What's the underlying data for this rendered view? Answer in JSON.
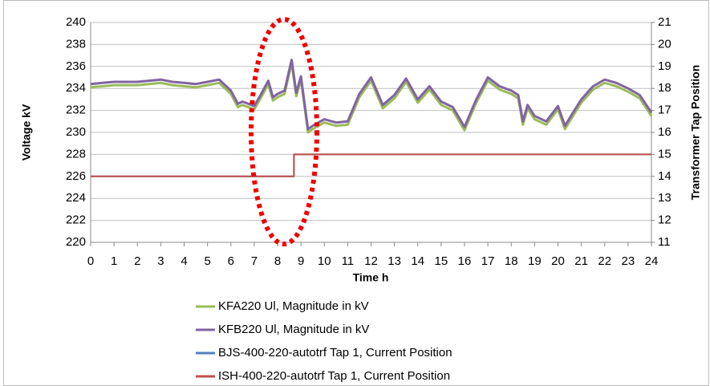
{
  "chart_data": {
    "type": "line",
    "xlabel": "Time h",
    "ylabel": "Voltage kV",
    "y2label": "Transformer Tap Position",
    "xlim": [
      0,
      24
    ],
    "xticks": [
      0,
      1,
      2,
      3,
      4,
      5,
      6,
      7,
      8,
      9,
      10,
      11,
      12,
      13,
      14,
      15,
      16,
      17,
      18,
      19,
      20,
      21,
      22,
      23,
      24
    ],
    "ylim": [
      220,
      240
    ],
    "yticks": [
      220,
      222,
      224,
      226,
      228,
      230,
      232,
      234,
      236,
      238,
      240
    ],
    "y2lim": [
      11,
      21
    ],
    "y2ticks": [
      11,
      12,
      13,
      14,
      15,
      16,
      17,
      18,
      19,
      20,
      21
    ],
    "grid": true,
    "legend": "bottom",
    "series": [
      {
        "name": "KFA220 Ul, Magnitude in kV",
        "color": "#9bbb59",
        "x": [
          0,
          0.5,
          1,
          1.5,
          2,
          2.5,
          3,
          3.5,
          4,
          4.5,
          5,
          5.5,
          6,
          6.3,
          6.5,
          7,
          7.3,
          7.6,
          7.8,
          8,
          8.3,
          8.6,
          8.8,
          9,
          9.3,
          9.5,
          10,
          10.5,
          11,
          11.5,
          12,
          12.5,
          13,
          13.5,
          14,
          14.5,
          15,
          15.5,
          16,
          16.5,
          17,
          17.5,
          18,
          18.3,
          18.5,
          18.7,
          19,
          19.5,
          20,
          20.3,
          20.7,
          21,
          21.5,
          22,
          22.5,
          23,
          23.5,
          24
        ],
        "values": [
          234.1,
          234.2,
          234.3,
          234.3,
          234.3,
          234.4,
          234.5,
          234.3,
          234.2,
          234.1,
          234.3,
          234.5,
          233.5,
          232.3,
          232.5,
          232.1,
          233.2,
          234.4,
          232.9,
          233.2,
          233.5,
          236.3,
          233.3,
          234.8,
          230.0,
          230.3,
          230.9,
          230.6,
          230.7,
          233.2,
          234.7,
          232.2,
          233.1,
          234.6,
          232.7,
          233.9,
          232.5,
          232.0,
          230.2,
          232.7,
          234.7,
          233.9,
          233.5,
          233.1,
          230.7,
          232.2,
          231.2,
          230.7,
          232.1,
          230.3,
          231.7,
          232.7,
          233.9,
          234.5,
          234.2,
          233.7,
          233.1,
          231.5
        ]
      },
      {
        "name": "KFB220 Ul, Magnitude in kV",
        "color": "#8064a2",
        "x": [
          0,
          0.5,
          1,
          1.5,
          2,
          2.5,
          3,
          3.5,
          4,
          4.5,
          5,
          5.5,
          6,
          6.3,
          6.5,
          7,
          7.3,
          7.6,
          7.8,
          8,
          8.3,
          8.6,
          8.8,
          9,
          9.3,
          9.5,
          10,
          10.5,
          11,
          11.5,
          12,
          12.5,
          13,
          13.5,
          14,
          14.5,
          15,
          15.5,
          16,
          16.5,
          17,
          17.5,
          18,
          18.3,
          18.5,
          18.7,
          19,
          19.5,
          20,
          20.3,
          20.7,
          21,
          21.5,
          22,
          22.5,
          23,
          23.5,
          24
        ],
        "values": [
          234.4,
          234.5,
          234.6,
          234.6,
          234.6,
          234.7,
          234.8,
          234.6,
          234.5,
          234.4,
          234.6,
          234.8,
          233.8,
          232.6,
          232.8,
          232.4,
          233.5,
          234.7,
          233.2,
          233.5,
          233.8,
          236.6,
          233.6,
          235.1,
          230.3,
          230.6,
          231.2,
          230.9,
          231.0,
          233.5,
          235.0,
          232.5,
          233.4,
          234.9,
          233.0,
          234.2,
          232.8,
          232.3,
          230.5,
          233.0,
          235.0,
          234.2,
          233.8,
          233.4,
          231.0,
          232.5,
          231.5,
          231.0,
          232.4,
          230.6,
          232.0,
          233.0,
          234.2,
          234.8,
          234.5,
          234.0,
          233.4,
          231.8
        ]
      },
      {
        "name": "BJS-400-220-autotrf Tap 1, Current Position",
        "color": "#4f81bd",
        "axis": "y2",
        "x": [
          0,
          8.7,
          8.7,
          24
        ],
        "values": [
          14,
          14,
          15,
          15
        ]
      },
      {
        "name": "ISH-400-220-autotrf Tap 1, Current Position",
        "color": "#c0504d",
        "axis": "y2",
        "x": [
          0,
          8.7,
          8.7,
          24
        ],
        "values": [
          14,
          14,
          15,
          15
        ]
      }
    ]
  }
}
